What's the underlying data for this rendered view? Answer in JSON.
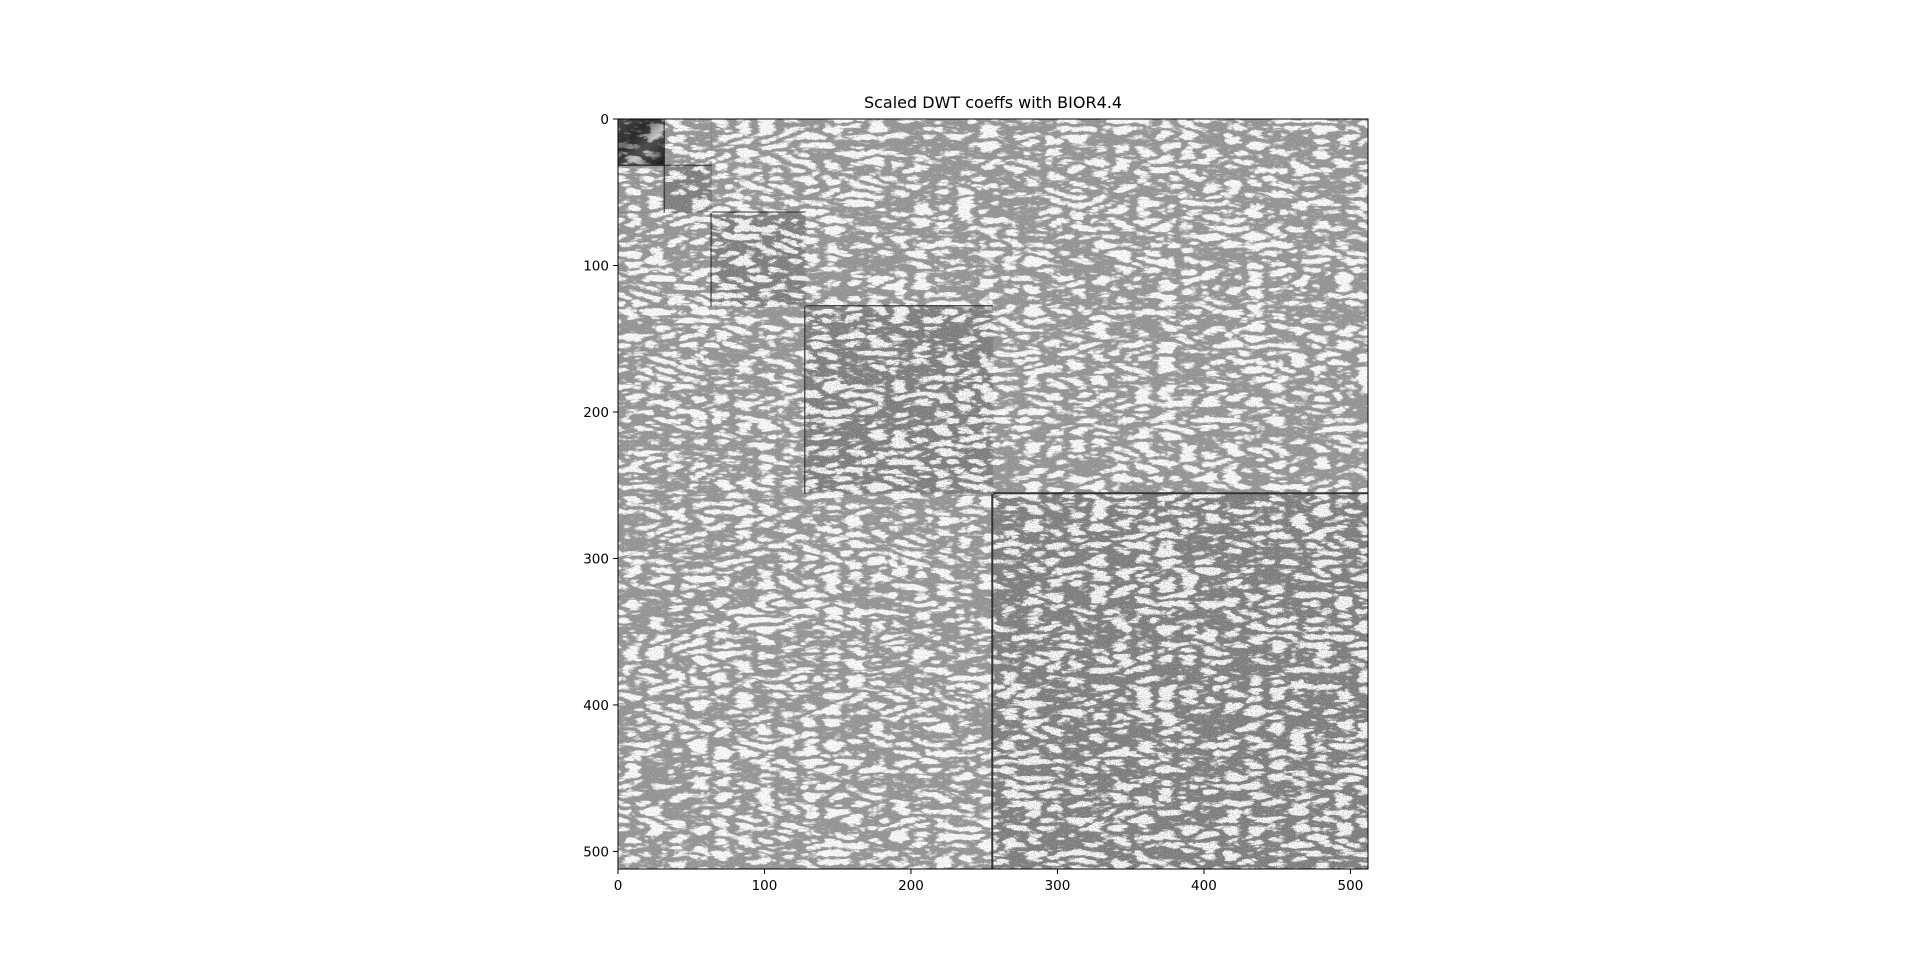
{
  "chart_data": {
    "type": "heatmap",
    "title": "Scaled DWT coeffs with BIOR4.4",
    "xlabel": "",
    "ylabel": "",
    "xlim": [
      0,
      512
    ],
    "ylim": [
      512,
      0
    ],
    "x_ticks": [
      0,
      100,
      200,
      300,
      400,
      500
    ],
    "y_ticks": [
      0,
      100,
      200,
      300,
      400,
      500
    ],
    "colormap": "gray",
    "grid": false,
    "background_color": "#ffffff",
    "image_description_tiles": [
      {
        "level": 4,
        "band": "approximation",
        "x_range": [
          0,
          32
        ],
        "y_range": [
          0,
          32
        ]
      },
      {
        "level": 4,
        "band": "horizontal",
        "x_range": [
          32,
          64
        ],
        "y_range": [
          0,
          32
        ]
      },
      {
        "level": 4,
        "band": "vertical",
        "x_range": [
          0,
          32
        ],
        "y_range": [
          32,
          64
        ]
      },
      {
        "level": 4,
        "band": "diagonal",
        "x_range": [
          32,
          64
        ],
        "y_range": [
          32,
          64
        ]
      },
      {
        "level": 3,
        "band": "horizontal",
        "x_range": [
          64,
          128
        ],
        "y_range": [
          0,
          64
        ]
      },
      {
        "level": 3,
        "band": "vertical",
        "x_range": [
          0,
          64
        ],
        "y_range": [
          64,
          128
        ]
      },
      {
        "level": 3,
        "band": "diagonal",
        "x_range": [
          64,
          128
        ],
        "y_range": [
          64,
          128
        ]
      },
      {
        "level": 2,
        "band": "horizontal",
        "x_range": [
          128,
          256
        ],
        "y_range": [
          0,
          128
        ]
      },
      {
        "level": 2,
        "band": "vertical",
        "x_range": [
          0,
          128
        ],
        "y_range": [
          128,
          256
        ]
      },
      {
        "level": 2,
        "band": "diagonal",
        "x_range": [
          128,
          256
        ],
        "y_range": [
          128,
          256
        ]
      },
      {
        "level": 1,
        "band": "horizontal",
        "x_range": [
          256,
          512
        ],
        "y_range": [
          0,
          256
        ]
      },
      {
        "level": 1,
        "band": "vertical",
        "x_range": [
          0,
          256
        ],
        "y_range": [
          256,
          512
        ]
      },
      {
        "level": 1,
        "band": "diagonal",
        "x_range": [
          256,
          512
        ],
        "y_range": [
          256,
          512
        ]
      }
    ]
  }
}
